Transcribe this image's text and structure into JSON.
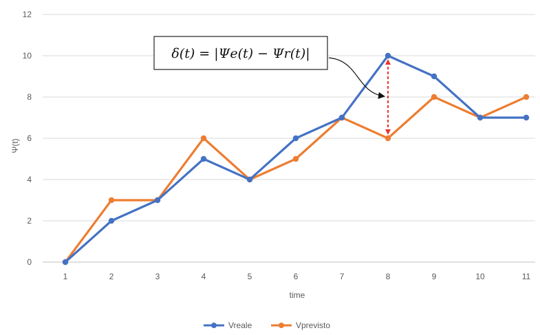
{
  "chart_data": {
    "type": "line",
    "title": "",
    "xlabel": "time",
    "ylabel": "Ψ(t)",
    "categories": [
      "1",
      "2",
      "3",
      "4",
      "5",
      "6",
      "7",
      "8",
      "9",
      "10",
      "11"
    ],
    "ylim": [
      0,
      12
    ],
    "yticks": [
      0,
      2,
      4,
      6,
      8,
      10,
      12
    ],
    "grid": true,
    "legend_position": "bottom",
    "series": [
      {
        "name": "Vreale",
        "color": "#4472C4",
        "values": [
          0,
          2,
          3,
          5,
          4,
          6,
          7,
          10,
          9,
          7,
          7
        ]
      },
      {
        "name": "Vprevisto",
        "color": "#ED7D31",
        "values": [
          0,
          3,
          3,
          6,
          4,
          5,
          7,
          6,
          8,
          7,
          8
        ]
      }
    ],
    "annotation": {
      "text": "δ(t) = |Ψe(t) − Ψr(t)|",
      "at_category": "8",
      "from_value": 10,
      "to_value": 6,
      "color": "#E8342E"
    }
  }
}
